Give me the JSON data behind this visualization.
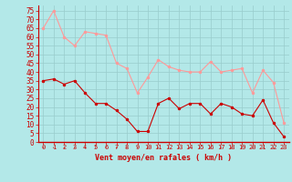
{
  "x": [
    0,
    1,
    2,
    3,
    4,
    5,
    6,
    7,
    8,
    9,
    10,
    11,
    12,
    13,
    14,
    15,
    16,
    17,
    18,
    19,
    20,
    21,
    22,
    23
  ],
  "wind_avg": [
    35,
    36,
    33,
    35,
    28,
    22,
    22,
    18,
    13,
    6,
    6,
    22,
    25,
    19,
    22,
    22,
    16,
    22,
    20,
    16,
    15,
    24,
    11,
    3
  ],
  "wind_gust": [
    65,
    75,
    60,
    55,
    63,
    62,
    61,
    45,
    42,
    28,
    37,
    47,
    43,
    41,
    40,
    40,
    46,
    40,
    41,
    42,
    28,
    41,
    34,
    11
  ],
  "avg_color": "#cc0000",
  "gust_color": "#ff9999",
  "background_color": "#b3e8e8",
  "grid_color": "#99cccc",
  "xlabel": "Vent moyen/en rafales ( km/h )",
  "xlabel_color": "#cc0000",
  "ylabel_vals": [
    0,
    5,
    10,
    15,
    20,
    25,
    30,
    35,
    40,
    45,
    50,
    55,
    60,
    65,
    70,
    75
  ],
  "ylim": [
    0,
    78
  ],
  "xlim": [
    -0.5,
    23.5
  ]
}
